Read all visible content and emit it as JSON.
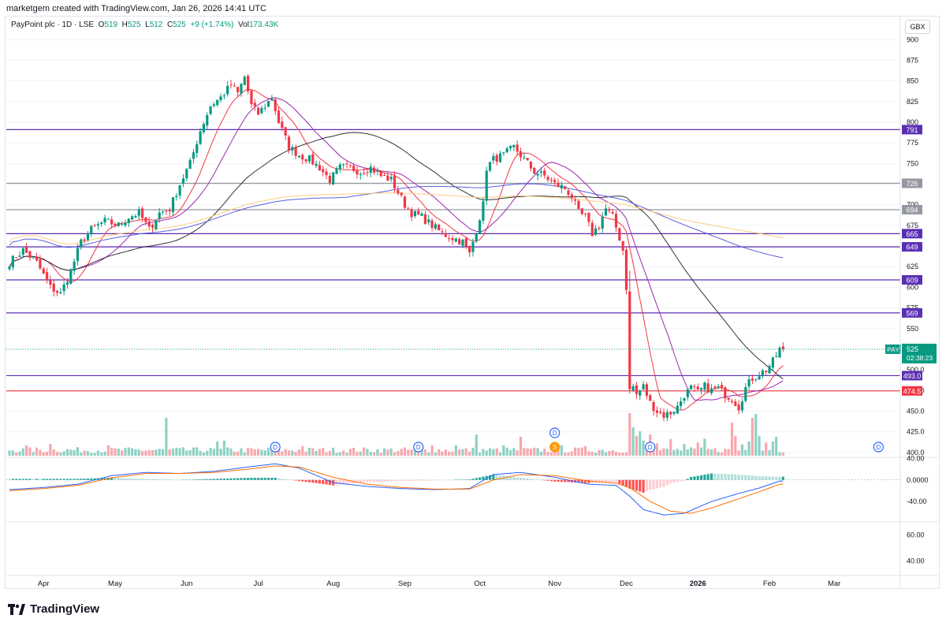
{
  "header": {
    "credit": "marketgem created with TradingView.com, Jan 26, 2026 14:41 UTC",
    "symbol": "PayPoint plc · 1D · LSE",
    "o_label": "O",
    "o_val": "519",
    "h_label": "H",
    "h_val": "525",
    "l_label": "L",
    "l_val": "512",
    "c_label": "C",
    "c_val": "525",
    "change": "+9 (+1.74%)",
    "vol_label": "Vol",
    "vol_val": "173.43K",
    "currency": "GBX"
  },
  "brand": {
    "name": "TradingView"
  },
  "price_tag": {
    "ticker": "PAY",
    "price": "525",
    "countdown": "02:38:23"
  },
  "colors": {
    "up": "#089981",
    "down": "#f23645",
    "purple_line": "#5b2fb3",
    "gray_line": "#9598a1",
    "red_line": "#f23645",
    "ma_red": "#f23645",
    "ma_purple": "#9c27b0",
    "ma_black": "#333333",
    "ma_blue": "#5b5fe0",
    "ma_yellow": "#ffcc80",
    "macd": "#2962ff",
    "signal": "#ff6d00"
  },
  "chart_data": {
    "type": "candlestick",
    "price_axis": {
      "ylim": [
        396,
        906
      ],
      "ticks": [
        "900",
        "875",
        "850",
        "825",
        "800",
        "775",
        "750",
        "725",
        "700",
        "675",
        "650",
        "625",
        "600",
        "575",
        "550",
        "525",
        "500.0",
        "475.0",
        "450.0",
        "425.0",
        "400.0"
      ],
      "tick_values": [
        900,
        875,
        850,
        825,
        800,
        775,
        750,
        725,
        700,
        675,
        650,
        625,
        600,
        575,
        550,
        525,
        500,
        475,
        450,
        425,
        400
      ]
    },
    "time_axis": {
      "labels": [
        "Apr",
        "May",
        "Jun",
        "Jul",
        "Aug",
        "Sep",
        "Oct",
        "Nov",
        "Dec",
        "2026",
        "Feb",
        "Mar"
      ],
      "bold": [
        false,
        false,
        false,
        false,
        false,
        false,
        false,
        false,
        false,
        true,
        false,
        false
      ],
      "index": [
        10,
        31,
        52,
        73,
        95,
        116,
        138,
        160,
        181,
        202,
        223,
        242
      ]
    },
    "levels": [
      {
        "label": "791",
        "value": 791,
        "color": "#5b2fb3"
      },
      {
        "label": "726",
        "value": 726,
        "color": "#9598a1"
      },
      {
        "label": "694",
        "value": 694,
        "color": "#9598a1"
      },
      {
        "label": "665",
        "value": 665,
        "color": "#5b2fb3"
      },
      {
        "label": "649",
        "value": 649,
        "color": "#5b2fb3"
      },
      {
        "label": "609",
        "value": 609,
        "color": "#5b2fb3"
      },
      {
        "label": "569",
        "value": 569,
        "color": "#5b2fb3"
      },
      {
        "label": "493.0",
        "value": 493,
        "color": "#5b2fb3"
      },
      {
        "label": "474.5",
        "value": 474.5,
        "color": "#f23645"
      }
    ],
    "close_anchors": [
      [
        0,
        630
      ],
      [
        4,
        645
      ],
      [
        8,
        630
      ],
      [
        12,
        600
      ],
      [
        15,
        592
      ],
      [
        18,
        620
      ],
      [
        21,
        655
      ],
      [
        24,
        670
      ],
      [
        28,
        680
      ],
      [
        32,
        675
      ],
      [
        35,
        685
      ],
      [
        38,
        690
      ],
      [
        41,
        670
      ],
      [
        44,
        690
      ],
      [
        47,
        695
      ],
      [
        50,
        725
      ],
      [
        53,
        750
      ],
      [
        56,
        790
      ],
      [
        59,
        820
      ],
      [
        62,
        830
      ],
      [
        65,
        845
      ],
      [
        67,
        835
      ],
      [
        69,
        855
      ],
      [
        71,
        820
      ],
      [
        73,
        810
      ],
      [
        75,
        820
      ],
      [
        77,
        830
      ],
      [
        79,
        800
      ],
      [
        82,
        770
      ],
      [
        85,
        760
      ],
      [
        88,
        755
      ],
      [
        91,
        745
      ],
      [
        94,
        730
      ],
      [
        97,
        745
      ],
      [
        100,
        745
      ],
      [
        103,
        740
      ],
      [
        106,
        745
      ],
      [
        109,
        735
      ],
      [
        112,
        730
      ],
      [
        114,
        715
      ],
      [
        116,
        700
      ],
      [
        118,
        690
      ],
      [
        121,
        685
      ],
      [
        124,
        675
      ],
      [
        127,
        665
      ],
      [
        130,
        660
      ],
      [
        133,
        655
      ],
      [
        135,
        640
      ],
      [
        137,
        670
      ],
      [
        139,
        700
      ],
      [
        140,
        745
      ],
      [
        142,
        755
      ],
      [
        145,
        760
      ],
      [
        148,
        770
      ],
      [
        151,
        755
      ],
      [
        154,
        740
      ],
      [
        157,
        735
      ],
      [
        160,
        725
      ],
      [
        163,
        720
      ],
      [
        165,
        710
      ],
      [
        167,
        690
      ],
      [
        169,
        685
      ],
      [
        171,
        665
      ],
      [
        173,
        675
      ],
      [
        175,
        695
      ],
      [
        177,
        685
      ],
      [
        179,
        660
      ],
      [
        180,
        645
      ],
      [
        181,
        600
      ],
      [
        182,
        475
      ],
      [
        183,
        480
      ],
      [
        184,
        470
      ],
      [
        186,
        480
      ],
      [
        188,
        460
      ],
      [
        190,
        450
      ],
      [
        192,
        445
      ],
      [
        194,
        448
      ],
      [
        196,
        455
      ],
      [
        198,
        470
      ],
      [
        200,
        478
      ],
      [
        202,
        472
      ],
      [
        204,
        480
      ],
      [
        206,
        475
      ],
      [
        208,
        478
      ],
      [
        210,
        470
      ],
      [
        212,
        465
      ],
      [
        214,
        455
      ],
      [
        216,
        478
      ],
      [
        218,
        490
      ],
      [
        220,
        495
      ],
      [
        222,
        500
      ],
      [
        224,
        510
      ],
      [
        226,
        525
      ]
    ],
    "volume": {
      "ylim": [
        0,
        100
      ]
    },
    "volume_spikes": [
      [
        5,
        22
      ],
      [
        12,
        25
      ],
      [
        29,
        22
      ],
      [
        46,
        80
      ],
      [
        61,
        30
      ],
      [
        63,
        32
      ],
      [
        77,
        22
      ],
      [
        86,
        20
      ],
      [
        124,
        22
      ],
      [
        131,
        22
      ],
      [
        137,
        45
      ],
      [
        145,
        22
      ],
      [
        150,
        40
      ],
      [
        162,
        22
      ],
      [
        169,
        20
      ],
      [
        182,
        90
      ],
      [
        183,
        60
      ],
      [
        184,
        42
      ],
      [
        185,
        52
      ],
      [
        186,
        32
      ],
      [
        188,
        45
      ],
      [
        189,
        25
      ],
      [
        190,
        26
      ],
      [
        194,
        35
      ],
      [
        198,
        25
      ],
      [
        202,
        28
      ],
      [
        204,
        36
      ],
      [
        212,
        70
      ],
      [
        213,
        42
      ],
      [
        215,
        24
      ],
      [
        217,
        30
      ],
      [
        218,
        80
      ],
      [
        219,
        88
      ],
      [
        220,
        42
      ],
      [
        222,
        28
      ],
      [
        224,
        30
      ],
      [
        225,
        40
      ]
    ],
    "events": [
      {
        "label": "D",
        "index": 78,
        "row": 0,
        "style": "blue"
      },
      {
        "label": "D",
        "index": 120,
        "row": 0,
        "style": "blue"
      },
      {
        "label": "D",
        "index": 160,
        "row": 1,
        "style": "blue"
      },
      {
        "label": "S",
        "index": 160,
        "row": 0,
        "style": "orange"
      },
      {
        "label": "D",
        "index": 188,
        "row": 0,
        "style": "blue"
      },
      {
        "label": "D",
        "index": 255,
        "row": 0,
        "style": "blue"
      }
    ],
    "macd": {
      "ticks": [
        "40.00",
        "0.0000",
        "-40.00"
      ],
      "tick_values": [
        40,
        0,
        -40
      ],
      "ylim": [
        -75,
        45
      ],
      "macd_anchors": [
        [
          0,
          -18
        ],
        [
          10,
          -14
        ],
        [
          20,
          -8
        ],
        [
          30,
          8
        ],
        [
          40,
          14
        ],
        [
          50,
          12
        ],
        [
          60,
          16
        ],
        [
          70,
          24
        ],
        [
          78,
          30
        ],
        [
          85,
          22
        ],
        [
          95,
          -5
        ],
        [
          105,
          -12
        ],
        [
          115,
          -16
        ],
        [
          125,
          -18
        ],
        [
          135,
          -16
        ],
        [
          142,
          10
        ],
        [
          150,
          14
        ],
        [
          160,
          5
        ],
        [
          170,
          -8
        ],
        [
          178,
          -10
        ],
        [
          182,
          -30
        ],
        [
          186,
          -55
        ],
        [
          192,
          -65
        ],
        [
          198,
          -62
        ],
        [
          206,
          -40
        ],
        [
          214,
          -25
        ],
        [
          220,
          -15
        ],
        [
          226,
          -2
        ]
      ],
      "signal_anchors": [
        [
          0,
          -20
        ],
        [
          10,
          -16
        ],
        [
          20,
          -10
        ],
        [
          30,
          4
        ],
        [
          40,
          12
        ],
        [
          50,
          12
        ],
        [
          60,
          14
        ],
        [
          70,
          20
        ],
        [
          78,
          26
        ],
        [
          85,
          24
        ],
        [
          95,
          5
        ],
        [
          105,
          -8
        ],
        [
          115,
          -14
        ],
        [
          125,
          -17
        ],
        [
          135,
          -17
        ],
        [
          142,
          0
        ],
        [
          150,
          10
        ],
        [
          160,
          8
        ],
        [
          170,
          -2
        ],
        [
          178,
          -6
        ],
        [
          182,
          -14
        ],
        [
          188,
          -40
        ],
        [
          194,
          -58
        ],
        [
          200,
          -62
        ],
        [
          206,
          -52
        ],
        [
          214,
          -35
        ],
        [
          220,
          -22
        ],
        [
          226,
          -8
        ]
      ]
    },
    "rsi": {
      "ticks": [
        "60.00",
        "40.00"
      ],
      "tick_values": [
        60,
        40
      ],
      "ylim": [
        30,
        70
      ]
    },
    "series": [
      {
        "name": "",
        "color": "#f23645",
        "window": 10
      },
      {
        "name": "",
        "color": "#9c27b0",
        "window": 20
      },
      {
        "name": "",
        "color": "#333333",
        "window": 50
      },
      {
        "name": "",
        "color": "#5b5fe0",
        "window": 100
      },
      {
        "name": "",
        "color": "#ffcc80",
        "window": 200
      }
    ]
  }
}
